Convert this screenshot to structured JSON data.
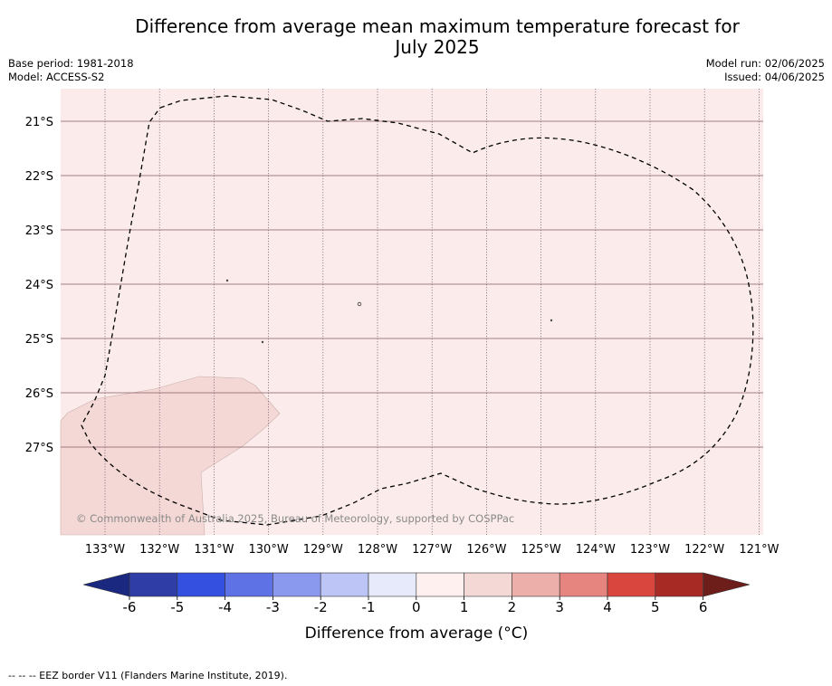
{
  "title": {
    "line1": "Difference from average mean maximum temperature forecast for",
    "line2": "July 2025"
  },
  "meta_left": {
    "base_period": "Base period: 1981-2018",
    "model": "Model: ACCESS-S2"
  },
  "meta_right": {
    "model_run": "Model run: 02/06/2025",
    "issued": "Issued: 04/06/2025"
  },
  "map": {
    "lon_ticks": [
      "133°W",
      "132°W",
      "131°W",
      "130°W",
      "129°W",
      "128°W",
      "127°W",
      "126°W",
      "125°W",
      "124°W",
      "123°W",
      "122°W",
      "121°W"
    ],
    "lat_ticks": [
      "21°S",
      "22°S",
      "23°S",
      "24°S",
      "25°S",
      "26°S",
      "27°S"
    ],
    "copyright": "© Commonwealth of Australia 2025, Bureau of Meteorology, supported by COSPPac",
    "background_color": "#fbeceb",
    "anomaly_patch_color": "#f4d8d5"
  },
  "colorbar": {
    "tick_labels": [
      "-6",
      "-5",
      "-4",
      "-3",
      "-2",
      "-1",
      "0",
      "1",
      "2",
      "3",
      "4",
      "5",
      "6"
    ],
    "colors": [
      "#2f3ea6",
      "#3350e0",
      "#5e72e6",
      "#8a99ee",
      "#bcc5f5",
      "#e6eafb",
      "#fdf0ee",
      "#f4d8d5",
      "#ecafaa",
      "#e6857f",
      "#d9463e",
      "#a82a24"
    ],
    "low_extend_color": "#1a2880",
    "high_extend_color": "#6e1e1a",
    "label": "Difference from average (°C)"
  },
  "footer": "-- -- -- EEZ border V11 (Flanders Marine Institute, 2019)."
}
